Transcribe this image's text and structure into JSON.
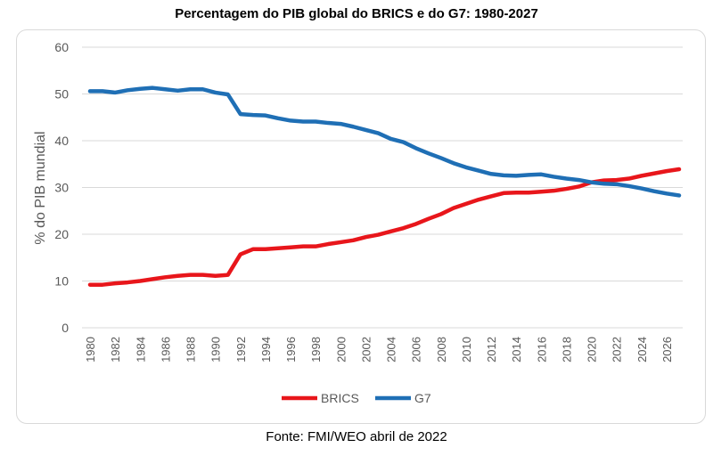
{
  "chart_data": {
    "type": "line",
    "title": "Percentagem do PIB global do BRICS e do G7: 1980-2027",
    "ylabel": "% do PIB mundial",
    "xlabel": "",
    "ylim": [
      0,
      60
    ],
    "yticks": [
      0,
      10,
      20,
      30,
      40,
      50,
      60
    ],
    "xlim": [
      1980,
      2027
    ],
    "xticks": [
      1980,
      1982,
      1984,
      1986,
      1988,
      1990,
      1992,
      1994,
      1996,
      1998,
      2000,
      2002,
      2004,
      2006,
      2008,
      2010,
      2012,
      2014,
      2016,
      2018,
      2020,
      2022,
      2024,
      2026
    ],
    "grid": true,
    "legend": "bottom",
    "x": [
      1980,
      1981,
      1982,
      1983,
      1984,
      1985,
      1986,
      1987,
      1988,
      1989,
      1990,
      1991,
      1992,
      1993,
      1994,
      1995,
      1996,
      1997,
      1998,
      1999,
      2000,
      2001,
      2002,
      2003,
      2004,
      2005,
      2006,
      2007,
      2008,
      2009,
      2010,
      2011,
      2012,
      2013,
      2014,
      2015,
      2016,
      2017,
      2018,
      2019,
      2020,
      2021,
      2022,
      2023,
      2024,
      2025,
      2026,
      2027
    ],
    "series": [
      {
        "name": "BRICS",
        "color": "#e8161b",
        "values": [
          9.2,
          9.2,
          9.5,
          9.7,
          10.0,
          10.4,
          10.8,
          11.1,
          11.3,
          11.3,
          11.1,
          11.3,
          15.7,
          16.8,
          16.8,
          17.0,
          17.2,
          17.4,
          17.4,
          17.9,
          18.3,
          18.7,
          19.4,
          19.9,
          20.6,
          21.3,
          22.2,
          23.3,
          24.3,
          25.6,
          26.5,
          27.4,
          28.1,
          28.8,
          28.9,
          28.9,
          29.1,
          29.3,
          29.7,
          30.2,
          31.1,
          31.5,
          31.6,
          31.9,
          32.5,
          33.0,
          33.5,
          33.9
        ]
      },
      {
        "name": "G7",
        "color": "#1f6fb5",
        "values": [
          50.6,
          50.6,
          50.3,
          50.8,
          51.1,
          51.3,
          51.0,
          50.7,
          51.0,
          51.0,
          50.3,
          49.9,
          45.7,
          45.5,
          45.4,
          44.8,
          44.3,
          44.1,
          44.1,
          43.8,
          43.6,
          43.0,
          42.3,
          41.6,
          40.4,
          39.7,
          38.4,
          37.3,
          36.3,
          35.2,
          34.3,
          33.6,
          32.9,
          32.6,
          32.5,
          32.7,
          32.8,
          32.3,
          31.9,
          31.6,
          31.1,
          30.8,
          30.7,
          30.3,
          29.8,
          29.2,
          28.7,
          28.3
        ]
      }
    ]
  },
  "source": "Fonte: FMI/WEO abril de 2022"
}
